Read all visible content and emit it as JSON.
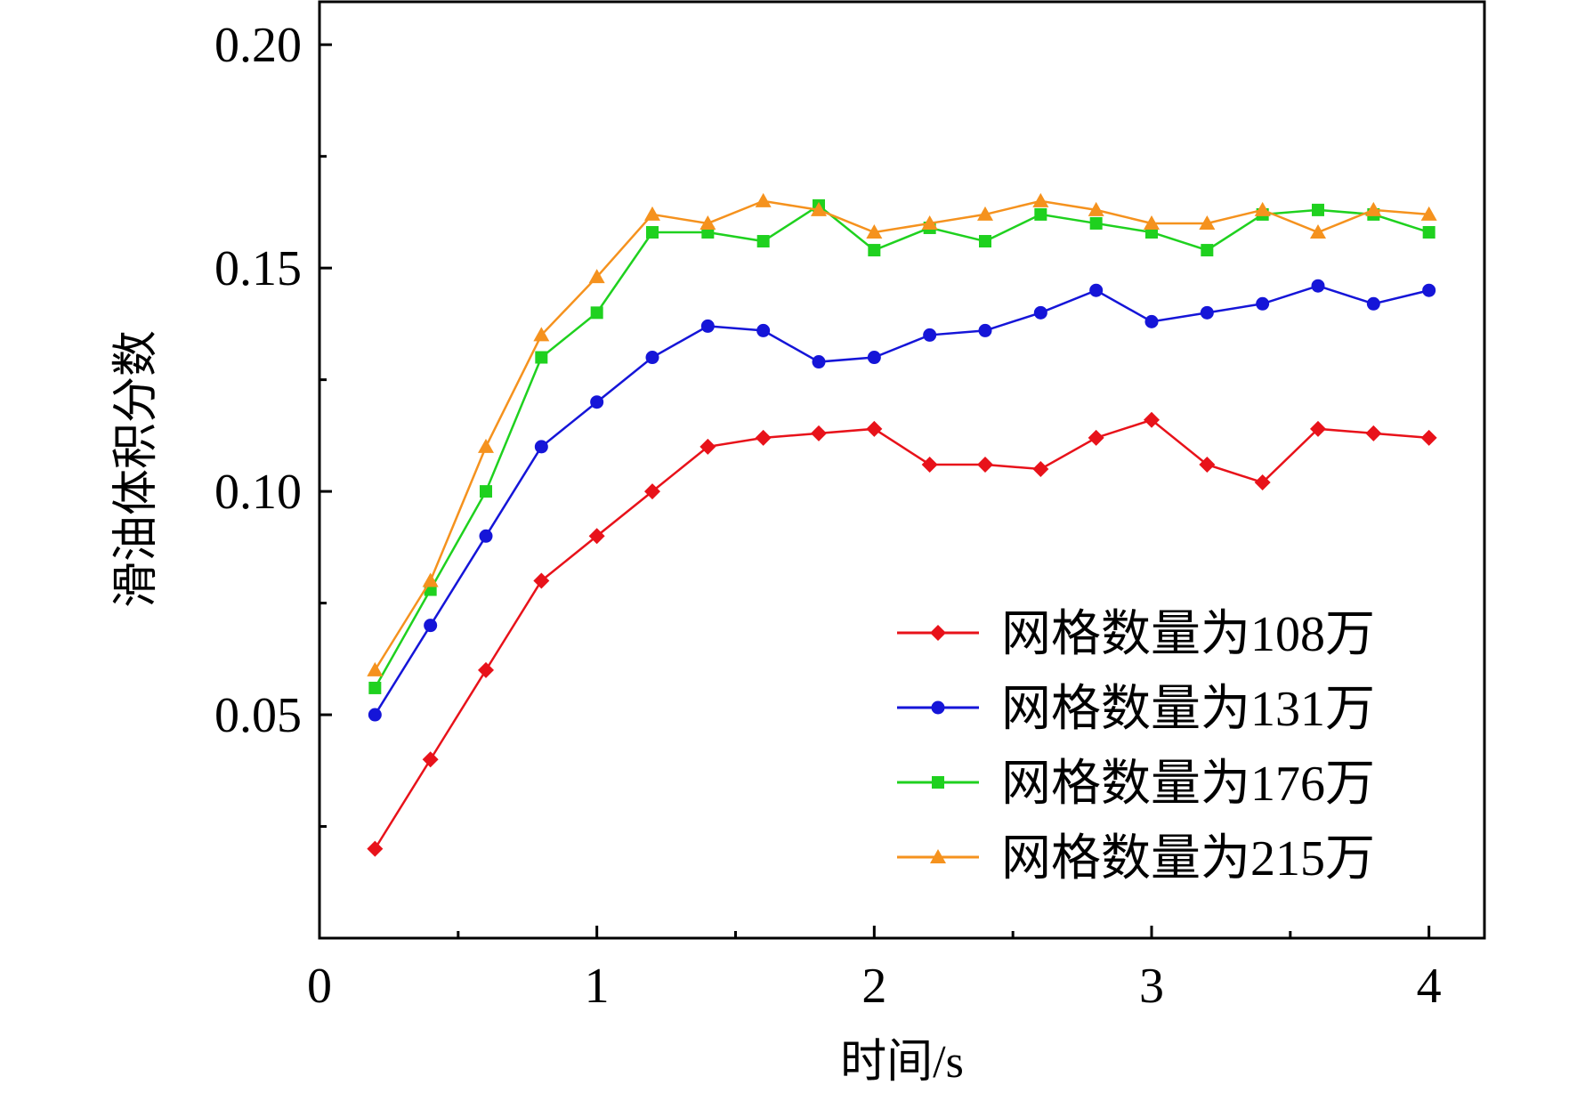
{
  "chart_data": {
    "type": "line",
    "title": "",
    "xlabel": "时间/s",
    "ylabel": "滑油体积分数",
    "xlim": [
      0,
      4.2
    ],
    "ylim": [
      0,
      0.21
    ],
    "xticks": [
      0,
      1,
      2,
      3,
      4
    ],
    "xtick_labels": [
      "0",
      "1",
      "2",
      "3",
      "4"
    ],
    "yticks": [
      0.05,
      0.1,
      0.15,
      0.2
    ],
    "ytick_labels": [
      "0.05",
      "0.10",
      "0.15",
      "0.20"
    ],
    "grid": false,
    "legend_position": "bottom-right",
    "x": [
      0.2,
      0.4,
      0.6,
      0.8,
      1.0,
      1.2,
      1.4,
      1.6,
      1.8,
      2.0,
      2.2,
      2.4,
      2.6,
      2.8,
      3.0,
      3.2,
      3.4,
      3.6,
      3.8,
      4.0
    ],
    "series": [
      {
        "name": "网格数量为108万",
        "color": "#e8121a",
        "marker": "diamond",
        "values": [
          0.02,
          0.04,
          0.06,
          0.08,
          0.09,
          0.1,
          0.11,
          0.112,
          0.113,
          0.114,
          0.106,
          0.106,
          0.105,
          0.112,
          0.116,
          0.106,
          0.102,
          0.114,
          0.113,
          0.112
        ]
      },
      {
        "name": "网格数量为131万",
        "color": "#1515d8",
        "marker": "circle",
        "values": [
          0.05,
          0.07,
          0.09,
          0.11,
          0.12,
          0.13,
          0.137,
          0.136,
          0.129,
          0.13,
          0.135,
          0.136,
          0.14,
          0.145,
          0.138,
          0.14,
          0.142,
          0.146,
          0.142,
          0.145
        ]
      },
      {
        "name": "网格数量为176万",
        "color": "#1fd11f",
        "marker": "square",
        "values": [
          0.056,
          0.078,
          0.1,
          0.13,
          0.14,
          0.158,
          0.158,
          0.156,
          0.164,
          0.154,
          0.159,
          0.156,
          0.162,
          0.16,
          0.158,
          0.154,
          0.162,
          0.163,
          0.162,
          0.158
        ]
      },
      {
        "name": "网格数量为215万",
        "color": "#f5921e",
        "marker": "triangle",
        "values": [
          0.06,
          0.08,
          0.11,
          0.135,
          0.148,
          0.162,
          0.16,
          0.165,
          0.163,
          0.158,
          0.16,
          0.162,
          0.165,
          0.163,
          0.16,
          0.16,
          0.163,
          0.158,
          0.163,
          0.162
        ]
      }
    ]
  }
}
